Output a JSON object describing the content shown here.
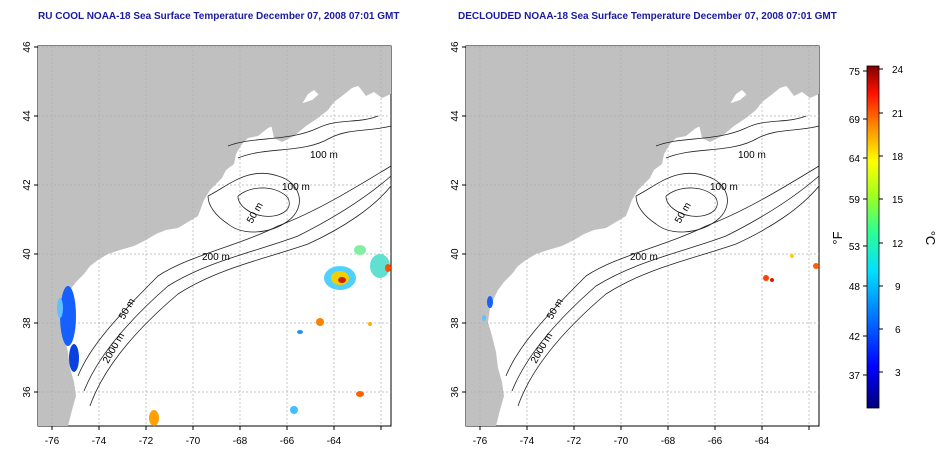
{
  "titles": {
    "left": "RU COOL NOAA-18 Sea Surface Temperature December 07, 2008 07:01 GMT",
    "right": "DECLOUDED NOAA-18 Sea Surface Temperature December 07, 2008 07:01 GMT"
  },
  "axes": {
    "lon_ticks": [
      "-76",
      "-74",
      "-72",
      "-70",
      "-68",
      "-66",
      "-64"
    ],
    "lat_ticks": [
      "46",
      "44",
      "42",
      "40",
      "38",
      "36"
    ]
  },
  "contour_labels": {
    "m100_a": "100 m",
    "m100_b": "100 m",
    "m50_a": "50 m",
    "m50_b": "50 m",
    "m200": "200 m",
    "m2000": "2000 m"
  },
  "colorbar": {
    "fahrenheit_ticks": [
      "75",
      "69",
      "64",
      "59",
      "53",
      "48",
      "42",
      "37"
    ],
    "celsius_ticks": [
      "24",
      "21",
      "18",
      "15",
      "12",
      "9",
      "6",
      "3"
    ],
    "unit_f": "°F",
    "unit_c": "°C",
    "colors": [
      "#000080",
      "#0000ff",
      "#0080ff",
      "#00ffff",
      "#00ff80",
      "#80ff00",
      "#ffff00",
      "#ff8000",
      "#ff0000",
      "#800000"
    ]
  },
  "colors": {
    "land": "#c0c0c0",
    "title": "#1a1aa0",
    "grid": "#b0b0b0"
  }
}
